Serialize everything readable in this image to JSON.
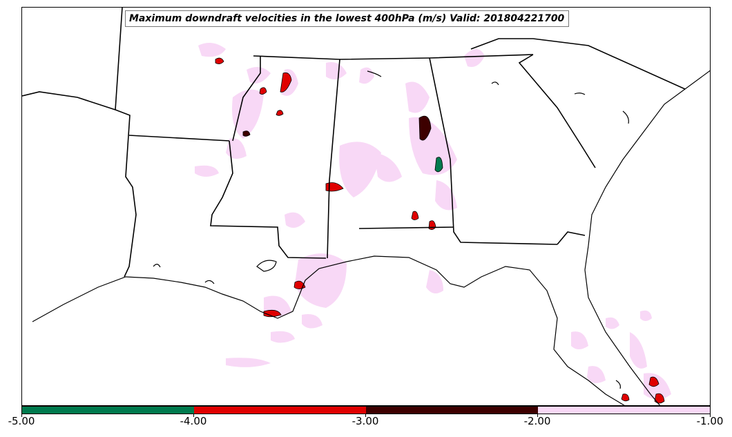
{
  "title": "Maximum downdraft velocities in the lowest 400hPa (m/s) Valid: 201804221700",
  "colorbar": {
    "ticks": [
      "-5.00",
      "-4.00",
      "-3.00",
      "-2.00",
      "-1.00"
    ],
    "tick_values": [
      -5,
      -4,
      -3,
      -2,
      -1
    ],
    "colors": [
      "#007a4e",
      "#e00000",
      "#3d0000",
      "#f8d8f6"
    ]
  },
  "map": {
    "region": "Southeastern United States",
    "states_shown": [
      "Louisiana",
      "Mississippi",
      "Alabama",
      "Georgia",
      "Florida",
      "South Carolina",
      "Tennessee",
      "Arkansas"
    ],
    "field_colors": {
      "light": "#f8d8f6",
      "moderate": "#e00000",
      "strong": "#3d0000",
      "extreme": "#007a4e"
    }
  }
}
